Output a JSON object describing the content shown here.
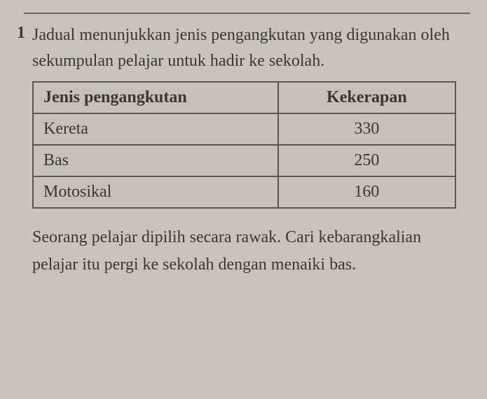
{
  "question": {
    "number": "1",
    "intro": "Jadual menunjukkan jenis pengangkutan yang digunakan oleh sekumpulan pelajar untuk hadir ke sekolah.",
    "closing": "Seorang pelajar dipilih secara rawak. Cari kebarangkalian pelajar itu pergi ke sekolah dengan menaiki bas."
  },
  "table": {
    "type": "table",
    "columns": [
      {
        "label": "Jenis pengangkutan",
        "align": "left"
      },
      {
        "label": "Kekerapan",
        "align": "center"
      }
    ],
    "rows": [
      {
        "transport": "Kereta",
        "frequency": "330"
      },
      {
        "transport": "Bas",
        "frequency": "250"
      },
      {
        "transport": "Motosikal",
        "frequency": "160"
      }
    ],
    "border_color": "#5a554e",
    "background_color": "#c5c1ba",
    "text_color": "#3a3632",
    "header_fontsize": 24,
    "cell_fontsize": 24
  },
  "page": {
    "background_color": "#c8c4bd",
    "text_color": "#3a3632",
    "fontsize": 24
  }
}
